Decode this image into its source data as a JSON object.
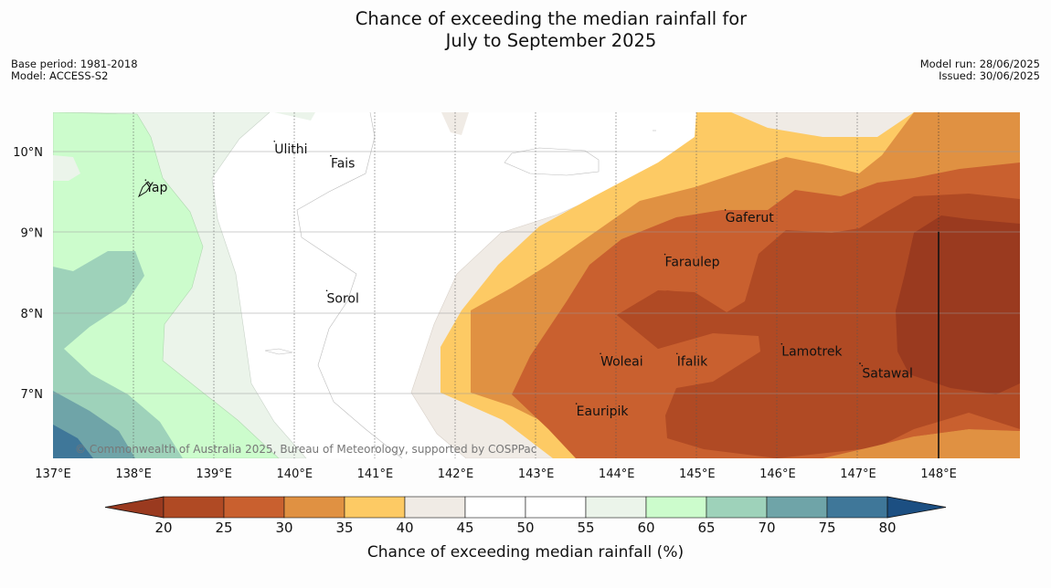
{
  "header": {
    "title_line1": "Chance of exceeding the median rainfall for",
    "title_line2": "July to September 2025",
    "base_period": "Base period: 1981-2018",
    "model": "Model: ACCESS-S2",
    "model_run": "Model run: 28/06/2025",
    "issued": "Issued: 30/06/2025"
  },
  "map": {
    "lon_ticks": [
      "137°E",
      "138°E",
      "139°E",
      "140°E",
      "141°E",
      "142°E",
      "143°E",
      "144°E",
      "145°E",
      "146°E",
      "147°E",
      "148°E"
    ],
    "lat_ticks": [
      "10°N",
      "9°N",
      "8°N",
      "7°N"
    ],
    "copyright": "© Commonwealth of Australia 2025, Bureau of Meteorology, supported by COSPPac",
    "places": [
      {
        "name": "Ulithi",
        "lon": 139.75,
        "lat": 9.98
      },
      {
        "name": "Fais",
        "lon": 140.45,
        "lat": 9.8
      },
      {
        "name": "Yap",
        "lon": 138.15,
        "lat": 9.5
      },
      {
        "name": "Gaferut",
        "lon": 145.35,
        "lat": 9.13
      },
      {
        "name": "Faraulep",
        "lon": 144.6,
        "lat": 8.58
      },
      {
        "name": "Sorol",
        "lon": 140.4,
        "lat": 8.13
      },
      {
        "name": "Lamotrek",
        "lon": 146.05,
        "lat": 7.47
      },
      {
        "name": "Woleai",
        "lon": 143.8,
        "lat": 7.35
      },
      {
        "name": "Ifalik",
        "lon": 144.75,
        "lat": 7.35
      },
      {
        "name": "Satawal",
        "lon": 147.05,
        "lat": 7.2
      },
      {
        "name": "Eauripik",
        "lon": 143.5,
        "lat": 6.73
      }
    ]
  },
  "colorbar": {
    "title": "Chance of exceeding median rainfall (%)",
    "ticks": [
      "20",
      "25",
      "30",
      "35",
      "40",
      "45",
      "50",
      "55",
      "60",
      "65",
      "70",
      "75",
      "80"
    ],
    "colors": [
      "#9a3a1f",
      "#b04a24",
      "#c9602f",
      "#e09142",
      "#fdca64",
      "#f0ebe5",
      "#ffffff",
      "#ffffff",
      "#ebf4ea",
      "#ccfccc",
      "#9ed2ba",
      "#6fa4a8",
      "#3f7799",
      "#1c4f82"
    ]
  }
}
